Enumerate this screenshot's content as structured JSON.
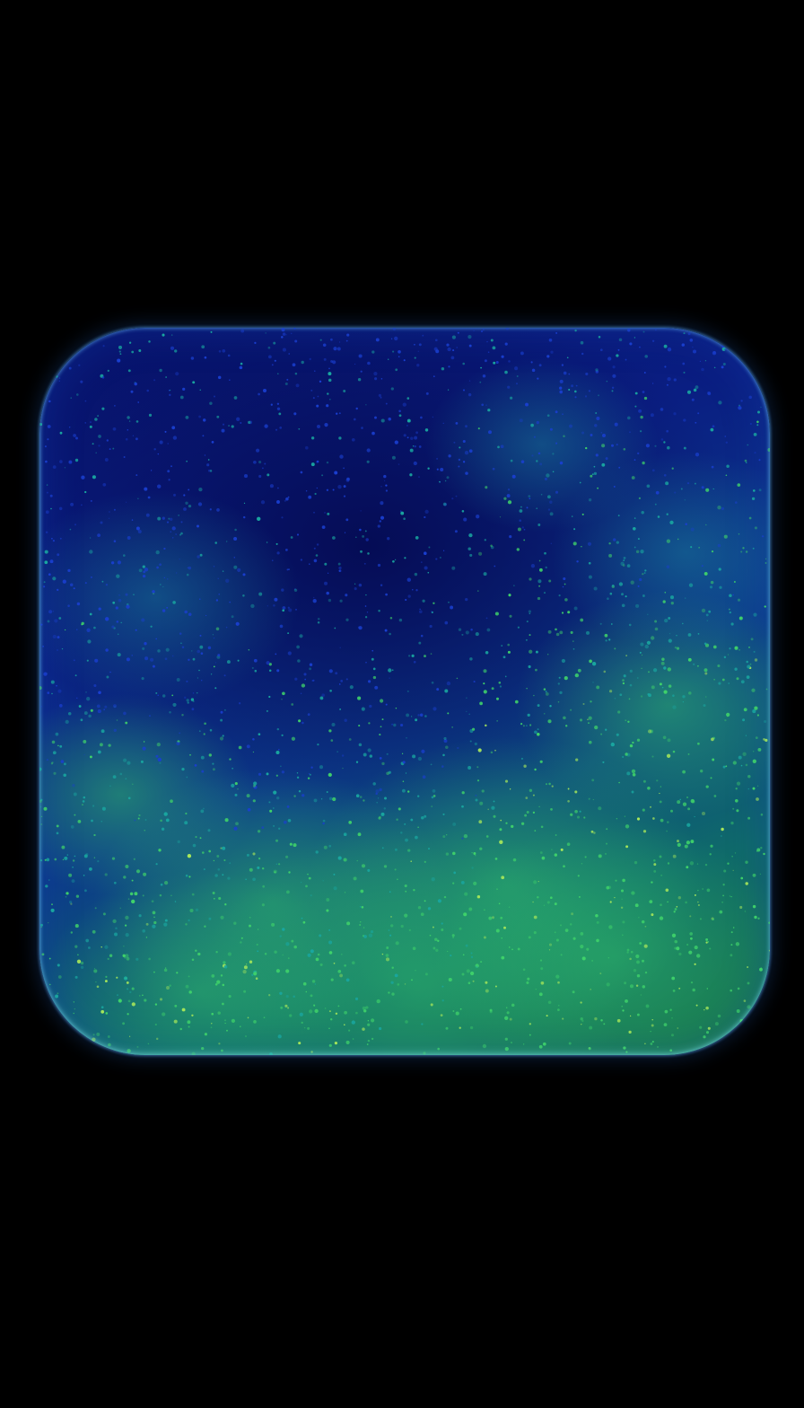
{
  "scene": {
    "background_color": "#000000",
    "subject": "glowing-particle-square",
    "colors": {
      "deep_blue": "#07126a",
      "mid_blue": "#1a3fd0",
      "teal": "#19a6a0",
      "green": "#3fd26a",
      "yellow_green": "#a8e85a"
    }
  }
}
